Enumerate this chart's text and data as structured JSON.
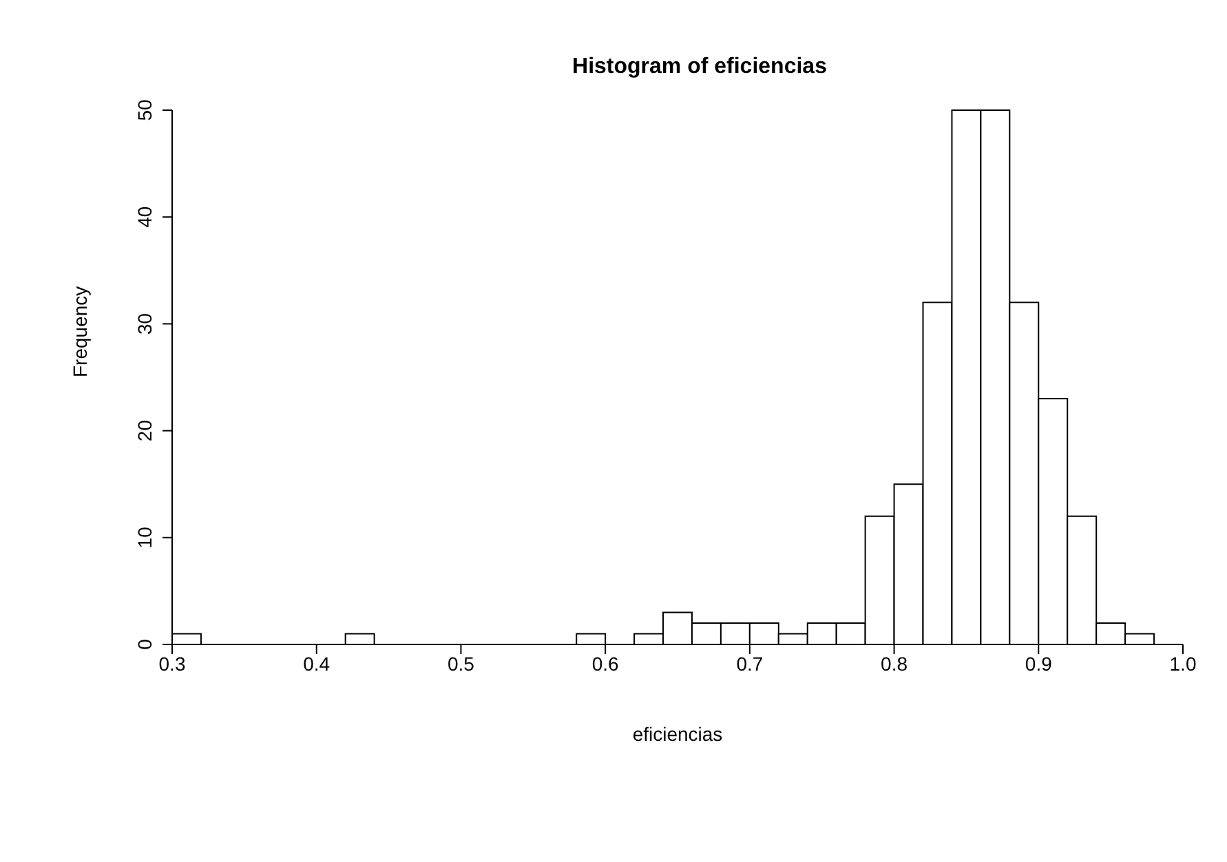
{
  "chart_data": {
    "type": "histogram",
    "title": "Histogram of eficiencias",
    "xlabel": "eficiencias",
    "ylabel": "Frequency",
    "bins": [
      0.3,
      0.32,
      0.34,
      0.36,
      0.38,
      0.4,
      0.42,
      0.44,
      0.46,
      0.48,
      0.5,
      0.52,
      0.54,
      0.56,
      0.58,
      0.6,
      0.62,
      0.64,
      0.66,
      0.68,
      0.7,
      0.72,
      0.74,
      0.76,
      0.78,
      0.8,
      0.82,
      0.84,
      0.86,
      0.88,
      0.9,
      0.92,
      0.94,
      0.96,
      0.98
    ],
    "values": [
      1,
      0,
      0,
      0,
      0,
      0,
      1,
      0,
      0,
      0,
      0,
      0,
      0,
      0,
      1,
      0,
      1,
      3,
      2,
      2,
      2,
      1,
      2,
      2,
      12,
      15,
      32,
      50,
      50,
      32,
      23,
      12,
      2,
      1
    ],
    "color": "#ffffff",
    "xlim": [
      0.3,
      1.0
    ],
    "xticks": [
      0.3,
      0.4,
      0.5,
      0.6,
      0.7,
      0.8,
      0.9,
      {
        "value": 1.0,
        "label": "1.0"
      }
    ],
    "ylim": [
      0,
      50
    ],
    "yticks": [
      0,
      10,
      20,
      30,
      40,
      50
    ]
  }
}
